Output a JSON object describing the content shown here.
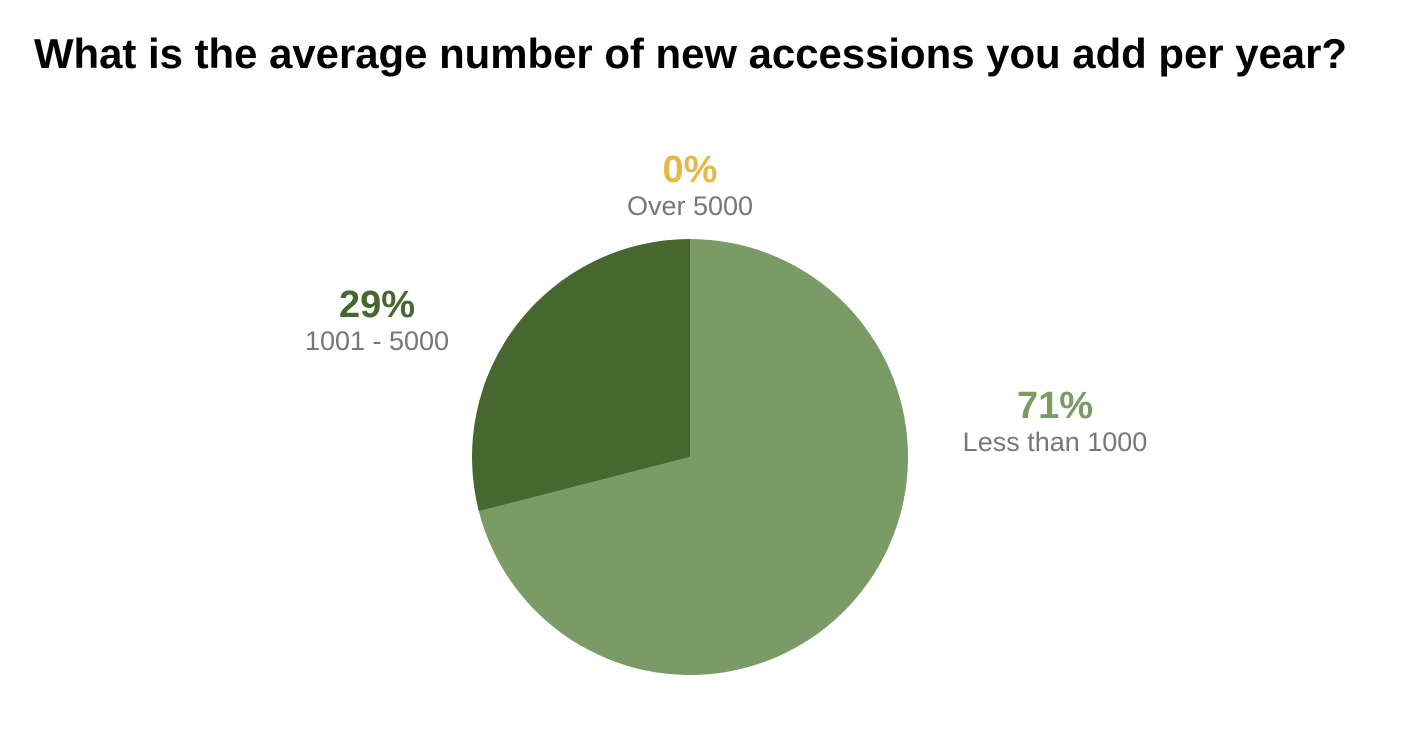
{
  "chart_data": {
    "type": "pie",
    "title": "What is the average number of new accessions you add per year?",
    "categories": [
      "Less than 1000",
      "1001 - 5000",
      "Over 5000"
    ],
    "values": [
      71,
      29,
      0
    ],
    "value_labels": [
      "71%",
      "29%",
      "0%"
    ],
    "colors": [
      "#7a9b66",
      "#466830",
      "#e6b84a"
    ]
  }
}
